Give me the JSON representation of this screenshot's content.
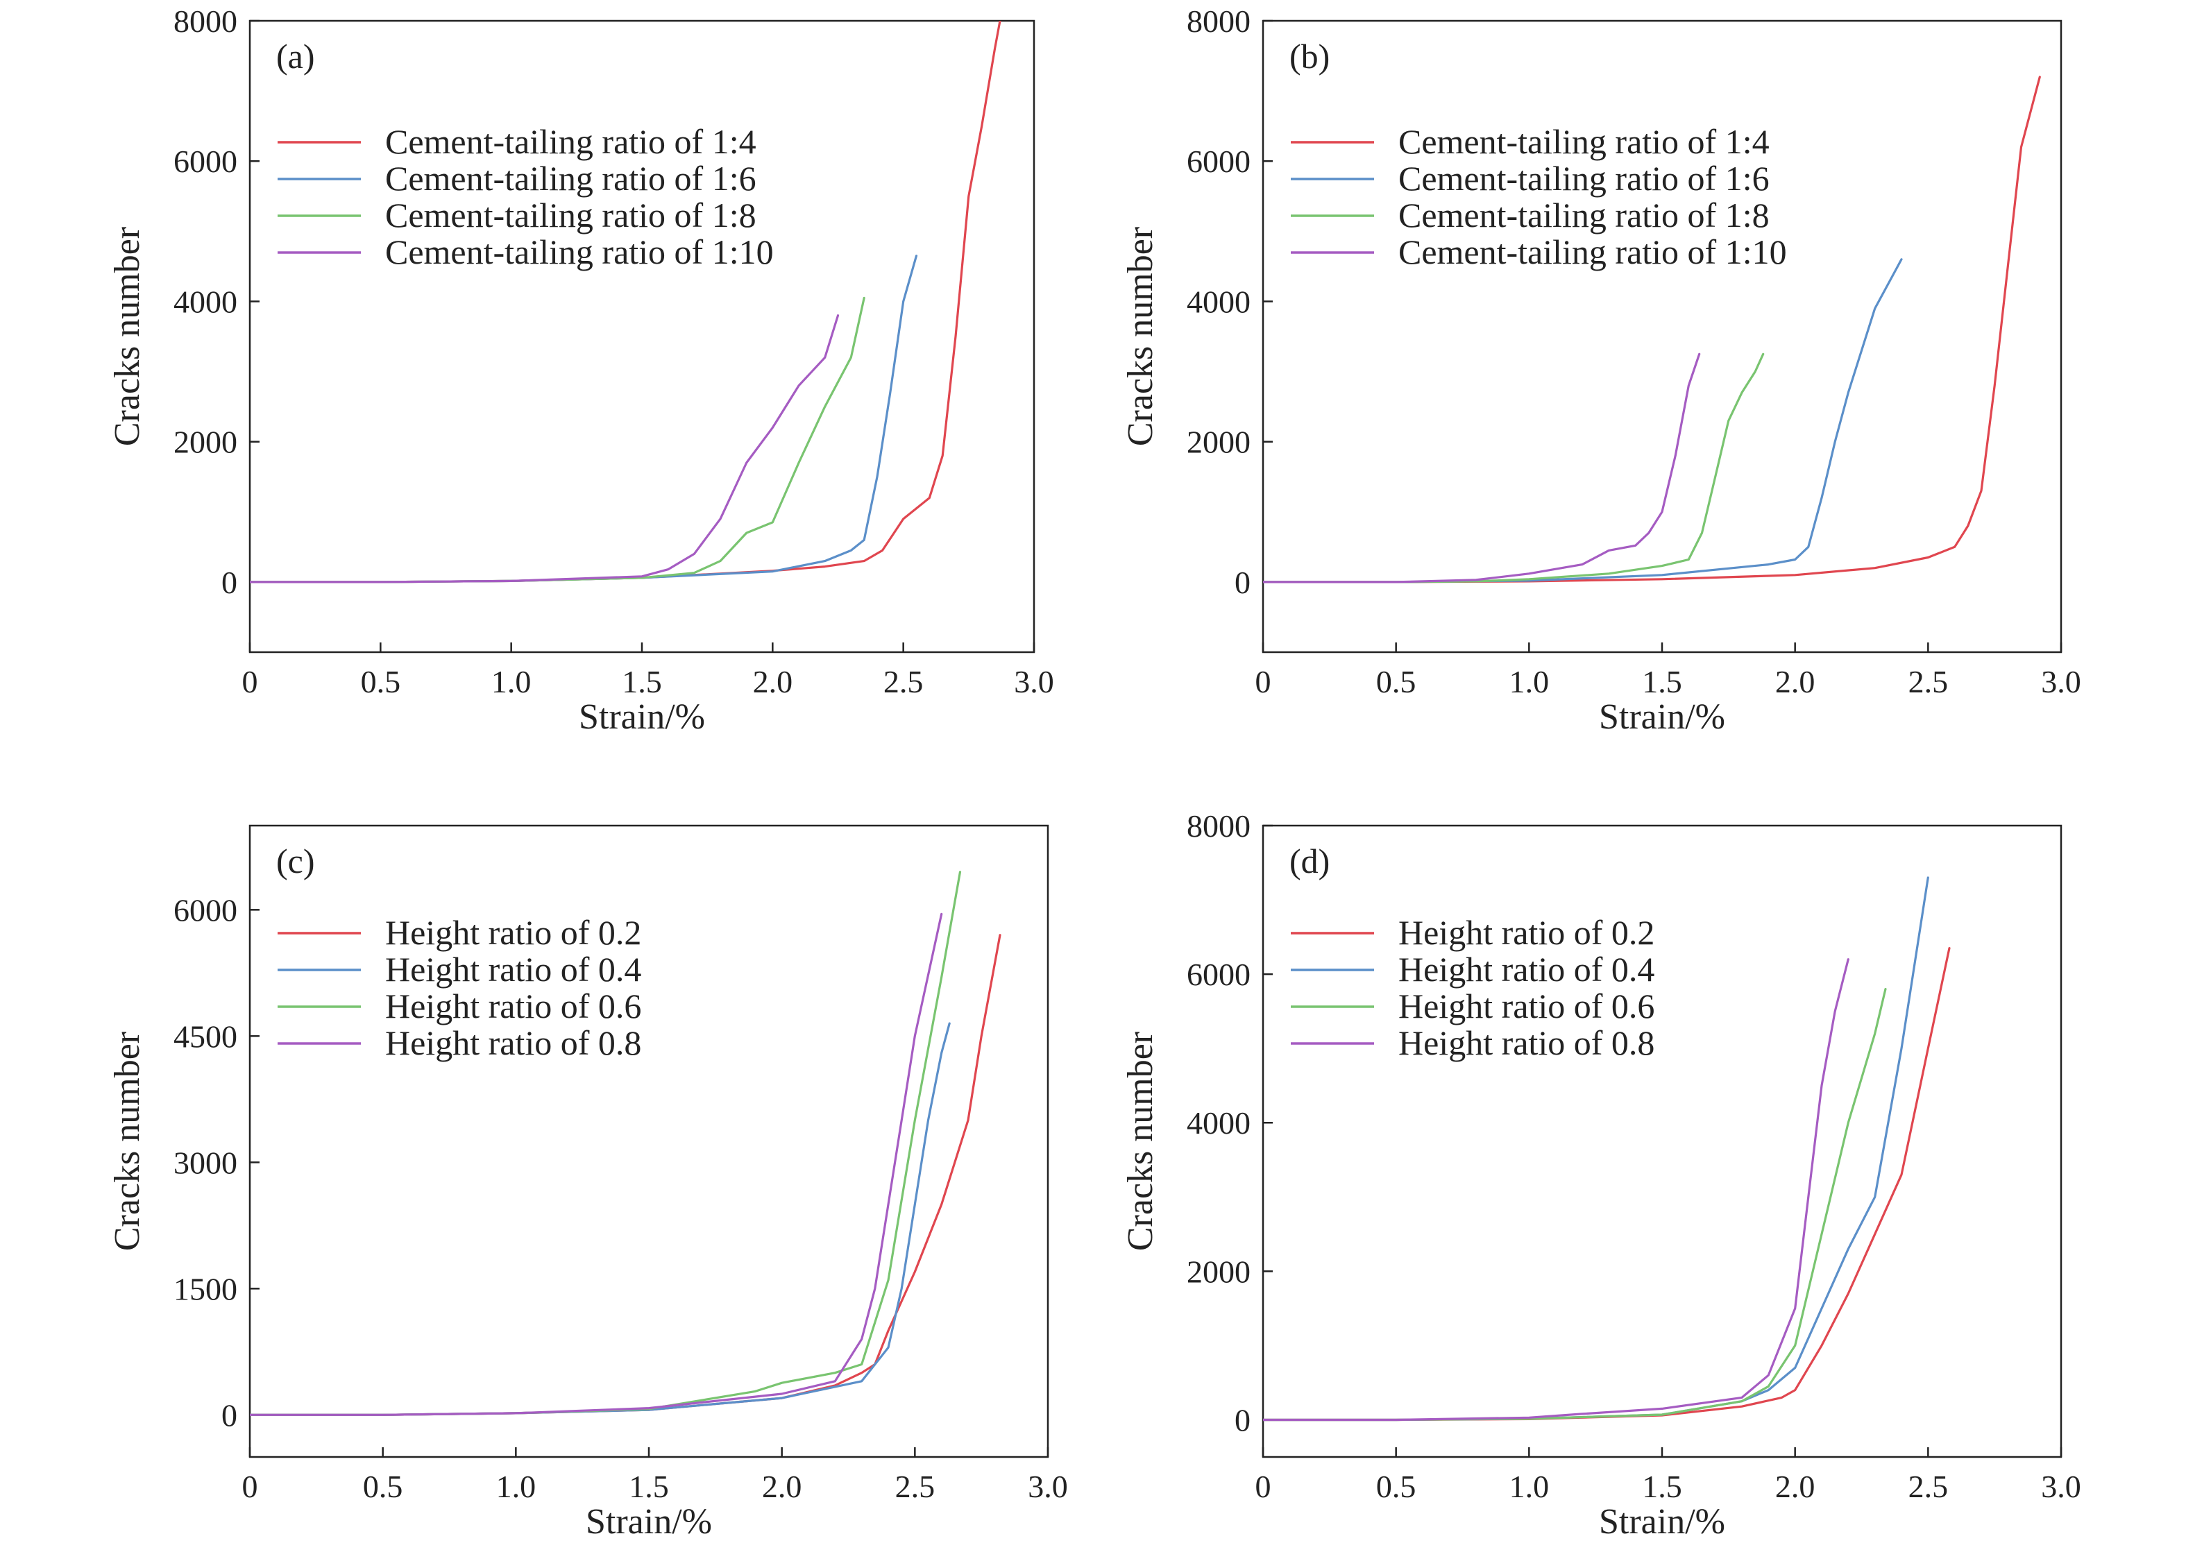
{
  "legend_colors": {
    "red": "#e0464f",
    "blue": "#5b8fc9",
    "green": "#79c470",
    "purple": "#a55cc2"
  },
  "chart_data": [
    {
      "panel_label": "(a)",
      "type": "line",
      "xlabel": "Strain/%",
      "ylabel": "Cracks number",
      "xlim": [
        0,
        3.0
      ],
      "ylim": [
        -1000,
        8000
      ],
      "xticks": [
        "0",
        "0.5",
        "1.0",
        "1.5",
        "2.0",
        "2.5",
        "3.0"
      ],
      "xtick_values": [
        0,
        0.5,
        1.0,
        1.5,
        2.0,
        2.5,
        3.0
      ],
      "yticks": [
        "0",
        "2000",
        "4000",
        "6000",
        "8000"
      ],
      "ytick_values": [
        0,
        2000,
        4000,
        6000,
        8000
      ],
      "legend_position": "upper-left",
      "series": [
        {
          "name": "Cement-tailing ratio of 1:4",
          "color": "#e0464f",
          "x": [
            0,
            0.5,
            1.0,
            1.5,
            2.0,
            2.2,
            2.35,
            2.42,
            2.5,
            2.6,
            2.65,
            2.7,
            2.75,
            2.8,
            2.85,
            2.87
          ],
          "y": [
            0,
            0,
            15,
            60,
            160,
            220,
            300,
            450,
            900,
            1200,
            1800,
            3500,
            5500,
            6500,
            7600,
            8000
          ]
        },
        {
          "name": "Cement-tailing ratio of 1:6",
          "color": "#5b8fc9",
          "x": [
            0,
            0.5,
            1.0,
            1.5,
            2.0,
            2.2,
            2.3,
            2.35,
            2.4,
            2.45,
            2.5,
            2.55
          ],
          "y": [
            0,
            0,
            15,
            60,
            150,
            300,
            450,
            600,
            1500,
            2700,
            4000,
            4650
          ]
        },
        {
          "name": "Cement-tailing ratio of 1:8",
          "color": "#79c470",
          "x": [
            0,
            0.5,
            1.0,
            1.5,
            1.7,
            1.8,
            1.9,
            2.0,
            2.1,
            2.2,
            2.3,
            2.35
          ],
          "y": [
            0,
            0,
            15,
            60,
            130,
            300,
            700,
            850,
            1700,
            2500,
            3200,
            4050
          ]
        },
        {
          "name": "Cement-tailing ratio of 1:10",
          "color": "#a55cc2",
          "x": [
            0,
            0.5,
            1.0,
            1.5,
            1.6,
            1.7,
            1.8,
            1.9,
            2.0,
            2.1,
            2.2,
            2.25
          ],
          "y": [
            0,
            0,
            15,
            80,
            180,
            400,
            900,
            1700,
            2200,
            2800,
            3200,
            3800
          ]
        }
      ]
    },
    {
      "panel_label": "(b)",
      "type": "line",
      "xlabel": "Strain/%",
      "ylabel": "Cracks number",
      "xlim": [
        0,
        3.0
      ],
      "ylim": [
        -1000,
        8000
      ],
      "xticks": [
        "0",
        "0.5",
        "1.0",
        "1.5",
        "2.0",
        "2.5",
        "3.0"
      ],
      "xtick_values": [
        0,
        0.5,
        1.0,
        1.5,
        2.0,
        2.5,
        3.0
      ],
      "yticks": [
        "0",
        "2000",
        "4000",
        "6000",
        "8000"
      ],
      "ytick_values": [
        0,
        2000,
        4000,
        6000,
        8000
      ],
      "legend_position": "upper-left",
      "series": [
        {
          "name": "Cement-tailing ratio of 1:4",
          "color": "#e0464f",
          "x": [
            0,
            0.5,
            1.0,
            1.5,
            2.0,
            2.3,
            2.5,
            2.6,
            2.65,
            2.7,
            2.75,
            2.8,
            2.85,
            2.92
          ],
          "y": [
            0,
            0,
            10,
            40,
            100,
            200,
            350,
            500,
            800,
            1300,
            2800,
            4500,
            6200,
            7200
          ]
        },
        {
          "name": "Cement-tailing ratio of 1:6",
          "color": "#5b8fc9",
          "x": [
            0,
            0.5,
            1.0,
            1.5,
            1.9,
            2.0,
            2.05,
            2.1,
            2.15,
            2.2,
            2.3,
            2.4
          ],
          "y": [
            0,
            0,
            20,
            100,
            250,
            320,
            500,
            1200,
            2000,
            2700,
            3900,
            4600
          ]
        },
        {
          "name": "Cement-tailing ratio of 1:8",
          "color": "#79c470",
          "x": [
            0,
            0.5,
            0.8,
            1.0,
            1.3,
            1.5,
            1.6,
            1.65,
            1.7,
            1.75,
            1.8,
            1.85,
            1.88
          ],
          "y": [
            0,
            0,
            10,
            40,
            120,
            230,
            320,
            700,
            1500,
            2300,
            2700,
            3000,
            3250
          ]
        },
        {
          "name": "Cement-tailing ratio of 1:10",
          "color": "#a55cc2",
          "x": [
            0,
            0.5,
            0.8,
            1.0,
            1.2,
            1.3,
            1.4,
            1.45,
            1.5,
            1.55,
            1.6,
            1.64
          ],
          "y": [
            0,
            0,
            30,
            120,
            250,
            450,
            520,
            700,
            1000,
            1800,
            2800,
            3250
          ]
        }
      ]
    },
    {
      "panel_label": "(c)",
      "type": "line",
      "xlabel": "Strain/%",
      "ylabel": "Cracks number",
      "xlim": [
        0,
        3.0
      ],
      "ylim": [
        -500,
        7000
      ],
      "xticks": [
        "0",
        "0.5",
        "1.0",
        "1.5",
        "2.0",
        "2.5",
        "3.0"
      ],
      "xtick_values": [
        0,
        0.5,
        1.0,
        1.5,
        2.0,
        2.5,
        3.0
      ],
      "yticks": [
        "0",
        "1500",
        "3000",
        "4500",
        "6000"
      ],
      "ytick_values": [
        0,
        1500,
        3000,
        4500,
        6000
      ],
      "legend_position": "upper-left",
      "series": [
        {
          "name": "Height ratio of 0.2",
          "color": "#e0464f",
          "x": [
            0,
            0.5,
            1.0,
            1.5,
            2.0,
            2.2,
            2.3,
            2.35,
            2.4,
            2.5,
            2.6,
            2.7,
            2.75,
            2.82
          ],
          "y": [
            0,
            0,
            20,
            60,
            200,
            350,
            500,
            600,
            1000,
            1700,
            2500,
            3500,
            4500,
            5700
          ]
        },
        {
          "name": "Height ratio of 0.4",
          "color": "#5b8fc9",
          "x": [
            0,
            0.5,
            1.0,
            1.5,
            2.0,
            2.3,
            2.35,
            2.4,
            2.45,
            2.5,
            2.55,
            2.6,
            2.63
          ],
          "y": [
            0,
            0,
            20,
            60,
            200,
            400,
            600,
            800,
            1500,
            2500,
            3500,
            4300,
            4650
          ]
        },
        {
          "name": "Height ratio of 0.6",
          "color": "#79c470",
          "x": [
            0,
            0.5,
            1.0,
            1.5,
            1.9,
            2.0,
            2.2,
            2.3,
            2.4,
            2.5,
            2.6,
            2.67
          ],
          "y": [
            0,
            0,
            20,
            70,
            280,
            380,
            500,
            600,
            1600,
            3500,
            5200,
            6450
          ]
        },
        {
          "name": "Height ratio of 0.8",
          "color": "#a55cc2",
          "x": [
            0,
            0.5,
            1.0,
            1.5,
            2.0,
            2.2,
            2.3,
            2.35,
            2.4,
            2.45,
            2.5,
            2.6
          ],
          "y": [
            0,
            0,
            20,
            80,
            250,
            400,
            900,
            1500,
            2500,
            3500,
            4500,
            5950
          ]
        }
      ]
    },
    {
      "panel_label": "(d)",
      "type": "line",
      "xlabel": "Strain/%",
      "ylabel": "Cracks number",
      "xlim": [
        0,
        3.0
      ],
      "ylim": [
        -500,
        8000
      ],
      "xticks": [
        "0",
        "0.5",
        "1.0",
        "1.5",
        "2.0",
        "2.5",
        "3.0"
      ],
      "xtick_values": [
        0,
        0.5,
        1.0,
        1.5,
        2.0,
        2.5,
        3.0
      ],
      "yticks": [
        "0",
        "2000",
        "4000",
        "6000",
        "8000"
      ],
      "ytick_values": [
        0,
        2000,
        4000,
        6000,
        8000
      ],
      "legend_position": "upper-left",
      "series": [
        {
          "name": "Height ratio of 0.2",
          "color": "#e0464f",
          "x": [
            0,
            0.5,
            1.0,
            1.5,
            1.8,
            1.95,
            2.0,
            2.1,
            2.2,
            2.3,
            2.4,
            2.5,
            2.58
          ],
          "y": [
            0,
            0,
            10,
            60,
            180,
            300,
            400,
            1000,
            1700,
            2500,
            3300,
            5000,
            6350
          ]
        },
        {
          "name": "Height ratio of 0.4",
          "color": "#5b8fc9",
          "x": [
            0,
            0.5,
            1.0,
            1.5,
            1.8,
            1.9,
            2.0,
            2.1,
            2.2,
            2.3,
            2.4,
            2.5
          ],
          "y": [
            0,
            0,
            15,
            70,
            250,
            400,
            700,
            1500,
            2300,
            3000,
            5000,
            7300
          ]
        },
        {
          "name": "Height ratio of 0.6",
          "color": "#79c470",
          "x": [
            0,
            0.5,
            1.0,
            1.5,
            1.8,
            1.9,
            2.0,
            2.1,
            2.2,
            2.3,
            2.34
          ],
          "y": [
            0,
            0,
            15,
            70,
            250,
            450,
            1000,
            2500,
            4000,
            5200,
            5800
          ]
        },
        {
          "name": "Height ratio of 0.8",
          "color": "#a55cc2",
          "x": [
            0,
            0.5,
            1.0,
            1.2,
            1.5,
            1.8,
            1.9,
            2.0,
            2.05,
            2.1,
            2.15,
            2.2
          ],
          "y": [
            0,
            0,
            30,
            80,
            150,
            300,
            600,
            1500,
            3000,
            4500,
            5500,
            6200
          ]
        }
      ]
    }
  ]
}
